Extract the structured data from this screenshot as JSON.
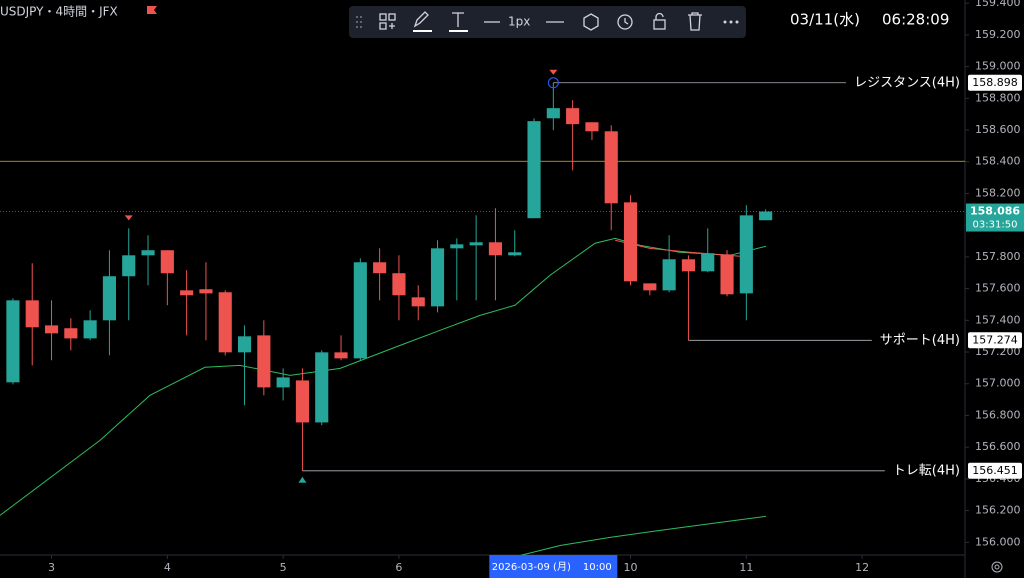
{
  "chart_data": {
    "type": "candlestick",
    "symbol": "USDJPY・4時間・JFX",
    "up_color": "#26a69a",
    "down_color": "#ef5350",
    "open": [
      157.009,
      157.526,
      157.368,
      157.35,
      157.286,
      157.4,
      157.678,
      157.81,
      157.842,
      157.589,
      157.596,
      157.577,
      157.198,
      157.305,
      156.977,
      157.021,
      156.756,
      157.198,
      157.16,
      157.766,
      157.697,
      157.545,
      157.488,
      157.854,
      157.873,
      157.892,
      157.81,
      158.044,
      158.674,
      158.738,
      158.649,
      158.592,
      158.144,
      157.633,
      157.589,
      157.785,
      157.709,
      157.816,
      157.57,
      158.031
    ],
    "high": [
      157.539,
      157.76,
      157.526,
      157.413,
      157.463,
      157.842,
      157.98,
      157.936,
      157.842,
      157.716,
      157.766,
      157.589,
      157.368,
      157.4,
      157.097,
      157.097,
      157.211,
      157.305,
      157.791,
      157.854,
      157.81,
      157.621,
      157.905,
      157.917,
      158.062,
      158.107,
      157.968,
      158.674,
      158.898,
      158.788,
      158.649,
      158.63,
      158.189,
      157.633,
      157.936,
      157.81,
      157.98,
      157.842,
      158.126,
      158.1
    ],
    "low": [
      156.996,
      157.116,
      157.148,
      157.211,
      157.274,
      157.179,
      157.4,
      157.621,
      157.495,
      157.305,
      157.274,
      157.179,
      156.864,
      156.927,
      156.895,
      156.451,
      156.738,
      157.148,
      157.148,
      157.526,
      157.4,
      157.4,
      157.45,
      157.526,
      157.526,
      157.526,
      157.804,
      158.044,
      158.599,
      158.346,
      158.536,
      157.968,
      157.621,
      157.558,
      157.577,
      157.274,
      157.703,
      157.551,
      157.4,
      158.031
    ],
    "close": [
      157.526,
      157.356,
      157.318,
      157.286,
      157.4,
      157.678,
      157.81,
      157.842,
      157.697,
      157.558,
      157.57,
      157.198,
      157.299,
      156.977,
      157.04,
      156.756,
      157.198,
      157.16,
      157.766,
      157.697,
      157.558,
      157.488,
      157.854,
      157.879,
      157.892,
      157.81,
      157.829,
      158.656,
      158.738,
      158.637,
      158.592,
      158.138,
      157.646,
      157.589,
      157.785,
      157.709,
      157.823,
      157.564,
      158.062,
      158.086
    ],
    "xlim": [
      -0.67,
      49.33
    ],
    "xticks": [
      {
        "value": 2,
        "label": "3"
      },
      {
        "value": 8,
        "label": "4"
      },
      {
        "value": 14,
        "label": "5"
      },
      {
        "value": 20,
        "label": "6"
      },
      {
        "value": 32,
        "label": "10"
      },
      {
        "value": 38,
        "label": "11"
      },
      {
        "value": 44,
        "label": "12"
      }
    ],
    "ylim": [
      155.92,
      159.42
    ],
    "yticks": [
      {
        "value": 156,
        "label": "156.000"
      },
      {
        "value": 156.2,
        "label": "156.200"
      },
      {
        "value": 156.4,
        "label": "156.400"
      },
      {
        "value": 156.6,
        "label": "156.600"
      },
      {
        "value": 156.8,
        "label": "156.800"
      },
      {
        "value": 157,
        "label": "157.000"
      },
      {
        "value": 157.2,
        "label": "157.200"
      },
      {
        "value": 157.4,
        "label": "157.400"
      },
      {
        "value": 157.6,
        "label": "157.600"
      },
      {
        "value": 157.8,
        "label": "157.800"
      },
      {
        "value": 158,
        "label": "158.000"
      },
      {
        "value": 158.2,
        "label": "158.200"
      },
      {
        "value": 158.4,
        "label": "158.400"
      },
      {
        "value": 158.6,
        "label": "158.600"
      },
      {
        "value": 158.8,
        "label": "158.800"
      },
      {
        "value": 159,
        "label": "159.000"
      },
      {
        "value": 159.2,
        "label": "159.200"
      },
      {
        "value": 159.4,
        "label": "159.400"
      }
    ],
    "lines": [
      {
        "color": "#2ebd5f",
        "x": [
          -0.67,
          4.51,
          7.1,
          9.95,
          11.76,
          14.36,
          16.95,
          20.06,
          22.13,
          24.2,
          26.01,
          27.83,
          30.16,
          31.2,
          32.49,
          34.56,
          37.16,
          39.02
        ],
        "values": [
          156.17,
          156.643,
          156.927,
          157.104,
          157.116,
          157.053,
          157.097,
          157.242,
          157.337,
          157.431,
          157.495,
          157.684,
          157.886,
          157.917,
          157.873,
          157.829,
          157.81,
          157.867
        ]
      },
      {
        "color": "#ef5350",
        "x": [
          31.2,
          33.01,
          35.08,
          37.67
        ],
        "values": [
          157.905,
          157.854,
          157.829,
          157.804
        ]
      },
      {
        "color": "#2ebd5f",
        "x": [
          26.27,
          28.35,
          30.94,
          33.53,
          36.64,
          39.02
        ],
        "values": [
          155.917,
          155.98,
          156.031,
          156.075,
          156.126,
          156.164
        ]
      }
    ],
    "hlines": [
      {
        "value": 158.403,
        "color": "#f5a623"
      }
    ],
    "current": {
      "value": 158.086,
      "countdown": "03:31:50",
      "color": "#26a69a"
    },
    "levels": [
      {
        "label": "レジスタンス(4H)",
        "value": 158.898,
        "start": 28
      },
      {
        "label": "サポート(4H)",
        "value": 157.274,
        "start": 35
      },
      {
        "label": "トレ転(4H)",
        "value": 156.451,
        "start": 15
      }
    ],
    "markers": [
      {
        "x": 6,
        "side": "above",
        "color": "#ef5350"
      },
      {
        "x": 28,
        "side": "above",
        "color": "#ef5350"
      },
      {
        "x": 15,
        "side": "below",
        "color": "#26a69a"
      }
    ],
    "crosshair": {
      "x": 28,
      "date": "2026-03-09 (月)",
      "time": "10:00"
    },
    "toolbar": {
      "width": "1px"
    },
    "clock": {
      "date": "03/11(水)",
      "time": "06:28:09"
    }
  }
}
